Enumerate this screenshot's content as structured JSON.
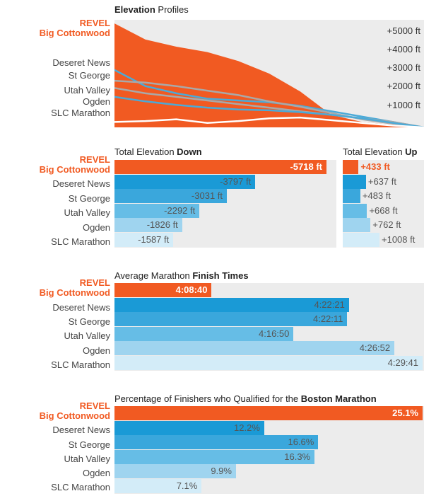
{
  "colors": {
    "revel": "#f15a22",
    "shades": [
      "#1a9ad6",
      "#3aa7dc",
      "#66bde6",
      "#9fd4ef",
      "#d3ecf8"
    ],
    "panel": "#ececec",
    "line_gray": "#a9a9a9",
    "line_blue": "#4aaad8"
  },
  "elevation": {
    "title_bold": "Elevation",
    "title_rest": " Profiles",
    "labels": [
      "REVEL",
      "Big Cottonwood",
      "Deseret News",
      "St George",
      "Utah Valley",
      "Ogden",
      "SLC Marathon"
    ],
    "ticks": [
      "+5000 ft",
      "+4000 ft",
      "+3000 ft",
      "+2000 ft",
      "+1000 ft"
    ]
  },
  "elev_down": {
    "title_rest": "Total Elevation ",
    "title_bold": "Down"
  },
  "elev_up": {
    "title_rest": "Total Elevation ",
    "title_bold": "Up"
  },
  "finish": {
    "title_rest": "Average Marathon ",
    "title_bold": "Finish Times"
  },
  "boston": {
    "title_rest": "Percentage of Finishers who Qualified for the ",
    "title_bold": "Boston Marathon"
  },
  "race_labels": {
    "revel_top": "REVEL",
    "revel_bottom": "Big Cottonwood",
    "others": [
      "Deseret News",
      "St George",
      "Utah Valley",
      "Ogden",
      "SLC Marathon"
    ]
  },
  "chart_data": [
    {
      "type": "bar",
      "title": "Total Elevation Down",
      "categories": [
        "REVEL Big Cottonwood",
        "Deseret News",
        "St George",
        "Utah Valley",
        "Ogden",
        "SLC Marathon"
      ],
      "values": [
        -5718,
        -3797,
        -3031,
        -2292,
        -1826,
        -1587
      ],
      "labels": [
        "-5718 ft",
        "-3797 ft",
        "-3031 ft",
        "-2292 ft",
        "-1826 ft",
        "-1587 ft"
      ],
      "unit": "ft"
    },
    {
      "type": "bar",
      "title": "Total Elevation Up",
      "categories": [
        "REVEL Big Cottonwood",
        "Deseret News",
        "St George",
        "Utah Valley",
        "Ogden",
        "SLC Marathon"
      ],
      "values": [
        433,
        637,
        483,
        668,
        762,
        1008
      ],
      "labels": [
        "+433 ft",
        "+637 ft",
        "+483 ft",
        "+668 ft",
        "+762 ft",
        "+1008 ft"
      ],
      "unit": "ft"
    },
    {
      "type": "bar",
      "title": "Average Marathon Finish Times",
      "categories": [
        "REVEL Big Cottonwood",
        "Deseret News",
        "St George",
        "Utah Valley",
        "Ogden",
        "SLC Marathon"
      ],
      "values": [
        248.67,
        262.35,
        262.18,
        256.83,
        266.87,
        269.68
      ],
      "labels": [
        "4:08:40",
        "4:22:21",
        "4:22:11",
        "4:16:50",
        "4:26:52",
        "4:29:41"
      ],
      "unit": "minutes"
    },
    {
      "type": "bar",
      "title": "Percentage of Finishers who Qualified for the Boston Marathon",
      "categories": [
        "REVEL Big Cottonwood",
        "Deseret News",
        "St George",
        "Utah Valley",
        "Ogden",
        "SLC Marathon"
      ],
      "values": [
        25.1,
        12.2,
        16.6,
        16.3,
        9.9,
        7.1
      ],
      "labels": [
        "25.1%",
        "12.2%",
        "16.6%",
        "16.3%",
        "9.9%",
        "7.1%"
      ],
      "unit": "%"
    },
    {
      "type": "area",
      "title": "Elevation Profiles",
      "ylabel": "",
      "ylim": [
        0,
        6000
      ],
      "yticks": [
        "+1000 ft",
        "+2000 ft",
        "+3000 ft",
        "+4000 ft",
        "+5000 ft"
      ],
      "series": [
        {
          "name": "REVEL Big Cottonwood",
          "x": [
            0,
            0.1,
            0.2,
            0.3,
            0.4,
            0.5,
            0.6,
            0.7,
            0.8,
            0.9,
            1
          ],
          "values": [
            5800,
            4900,
            4500,
            4200,
            3700,
            3000,
            2000,
            700,
            300,
            150,
            0
          ]
        },
        {
          "name": "Deseret News",
          "x": [
            0,
            0.1,
            0.2,
            0.3,
            0.4,
            0.5,
            0.6,
            0.7,
            0.8,
            0.9,
            1
          ],
          "values": [
            3200,
            2300,
            1900,
            1600,
            1500,
            1400,
            1200,
            900,
            600,
            300,
            0
          ]
        },
        {
          "name": "St George",
          "x": [
            0,
            0.1,
            0.2,
            0.3,
            0.4,
            0.5,
            0.6,
            0.7,
            0.8,
            0.9,
            1
          ],
          "values": [
            2600,
            2500,
            2300,
            2050,
            1800,
            1450,
            1150,
            800,
            450,
            200,
            0
          ]
        },
        {
          "name": "Utah Valley",
          "x": [
            0,
            0.1,
            0.2,
            0.3,
            0.4,
            0.5,
            0.6,
            0.7,
            0.8,
            0.9,
            1
          ],
          "values": [
            2200,
            1900,
            1700,
            1500,
            1300,
            1100,
            900,
            700,
            500,
            300,
            0
          ]
        },
        {
          "name": "Ogden",
          "x": [
            0,
            0.1,
            0.2,
            0.3,
            0.4,
            0.5,
            0.6,
            0.7,
            0.8,
            0.9,
            1
          ],
          "values": [
            1700,
            1450,
            1250,
            1100,
            1000,
            950,
            850,
            700,
            500,
            250,
            0
          ]
        },
        {
          "name": "SLC Marathon",
          "x": [
            0,
            0.1,
            0.2,
            0.3,
            0.4,
            0.5,
            0.6,
            0.7,
            0.8,
            0.9,
            1
          ],
          "values": [
            300,
            350,
            450,
            250,
            350,
            500,
            550,
            400,
            250,
            100,
            0
          ]
        }
      ]
    }
  ]
}
